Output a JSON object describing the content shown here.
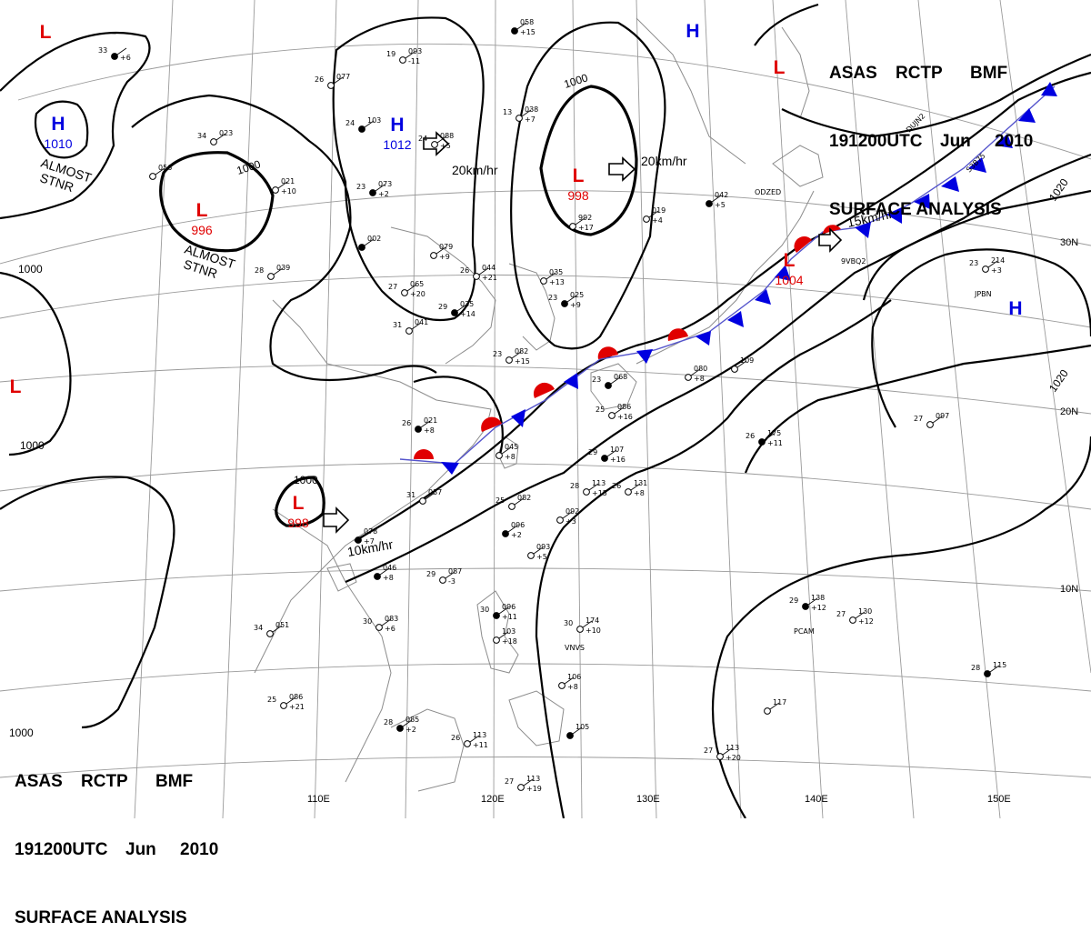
{
  "header": {
    "agency": "ASAS",
    "station": "RCTP",
    "code": "BMF",
    "time": "191200UTC",
    "month": "Jun",
    "year": "2010",
    "title": "SURFACE ANALYSIS"
  },
  "longitude_labels": [
    "110E",
    "120E",
    "130E",
    "140E",
    "150E"
  ],
  "latitude_labels": [
    "30N",
    "20N",
    "10N"
  ],
  "isobar_labels": [
    "1000",
    "1000",
    "1000",
    "1000",
    "1000",
    "1000",
    "1020",
    "1020"
  ],
  "pressure_centers": [
    {
      "type": "L",
      "value": "996",
      "note": "ALMOST STNR",
      "color": "#e00000"
    },
    {
      "type": "L",
      "value": "998",
      "note": "",
      "color": "#e00000"
    },
    {
      "type": "L",
      "value": "998",
      "note": "",
      "color": "#e00000"
    },
    {
      "type": "L",
      "value": "1004",
      "note": "",
      "color": "#e00000"
    },
    {
      "type": "H",
      "value": "1010",
      "note": "ALMOST STNR",
      "color": "#0000e0"
    },
    {
      "type": "H",
      "value": "1012",
      "note": "",
      "color": "#0000e0"
    },
    {
      "type": "H",
      "value": "",
      "note": "",
      "color": "#0000e0"
    },
    {
      "type": "H",
      "value": "",
      "note": "",
      "color": "#0000e0"
    },
    {
      "type": "L",
      "value": "",
      "note": "",
      "color": "#e00000"
    },
    {
      "type": "L",
      "value": "",
      "note": "",
      "color": "#e00000"
    },
    {
      "type": "L",
      "value": "",
      "note": "",
      "color": "#e00000"
    }
  ],
  "motion_vectors": [
    "20km/hr",
    "20km/hr",
    "10km/hr",
    "15km/hr"
  ],
  "station_codes": [
    "VNVS",
    "PCAM",
    "JPBN",
    "ODZED",
    "DUJN2",
    "S3B75",
    "9VBQ2"
  ],
  "stations": [
    {
      "temp": "33",
      "pressure": "",
      "change": "+6"
    },
    {
      "temp": "26",
      "pressure": "077",
      "change": ""
    },
    {
      "temp": "19",
      "pressure": "093",
      "change": "-11"
    },
    {
      "temp": "24",
      "pressure": "103",
      "change": ""
    },
    {
      "temp": "24",
      "pressure": "088",
      "change": "+5"
    },
    {
      "temp": "13",
      "pressure": "038",
      "change": "+7"
    },
    {
      "temp": "",
      "pressure": "058",
      "change": "+15"
    },
    {
      "temp": "34",
      "pressure": "023",
      "change": ""
    },
    {
      "temp": "",
      "pressure": "021",
      "change": "+10"
    },
    {
      "temp": "23",
      "pressure": "073",
      "change": "+2"
    },
    {
      "temp": "",
      "pressure": "056",
      "change": ""
    },
    {
      "temp": "28",
      "pressure": "039",
      "change": ""
    },
    {
      "temp": "",
      "pressure": "002",
      "change": ""
    },
    {
      "temp": "",
      "pressure": "079",
      "change": "+9"
    },
    {
      "temp": "27",
      "pressure": "065",
      "change": "+20"
    },
    {
      "temp": "29",
      "pressure": "035",
      "change": "+14"
    },
    {
      "temp": "26",
      "pressure": "044",
      "change": "+21"
    },
    {
      "temp": "",
      "pressure": "035",
      "change": "+13"
    },
    {
      "temp": "23",
      "pressure": "025",
      "change": "+9"
    },
    {
      "temp": "",
      "pressure": "992",
      "change": "+17"
    },
    {
      "temp": "",
      "pressure": "019",
      "change": "+4"
    },
    {
      "temp": "",
      "pressure": "042",
      "change": "+5"
    },
    {
      "temp": "31",
      "pressure": "041",
      "change": ""
    },
    {
      "temp": "23",
      "pressure": "082",
      "change": "+15"
    },
    {
      "temp": "23",
      "pressure": "068",
      "change": ""
    },
    {
      "temp": "",
      "pressure": "080",
      "change": "+8"
    },
    {
      "temp": "",
      "pressure": "109",
      "change": ""
    },
    {
      "temp": "26",
      "pressure": "021",
      "change": "+8"
    },
    {
      "temp": "",
      "pressure": "045",
      "change": "+8"
    },
    {
      "temp": "25",
      "pressure": "086",
      "change": "+16"
    },
    {
      "temp": "29",
      "pressure": "107",
      "change": "+16"
    },
    {
      "temp": "28",
      "pressure": "113",
      "change": "+15"
    },
    {
      "temp": "26",
      "pressure": "131",
      "change": "+8"
    },
    {
      "temp": "26",
      "pressure": "175",
      "change": "+11"
    },
    {
      "temp": "27",
      "pressure": "097",
      "change": ""
    },
    {
      "temp": "31",
      "pressure": "037",
      "change": ""
    },
    {
      "temp": "",
      "pressure": "078",
      "change": "+7"
    },
    {
      "temp": "25",
      "pressure": "082",
      "change": ""
    },
    {
      "temp": "",
      "pressure": "092",
      "change": "+3"
    },
    {
      "temp": "",
      "pressure": "096",
      "change": "+2"
    },
    {
      "temp": "",
      "pressure": "093",
      "change": "+5"
    },
    {
      "temp": "29",
      "pressure": "087",
      "change": "-3"
    },
    {
      "temp": "",
      "pressure": "046",
      "change": "+8"
    },
    {
      "temp": "34",
      "pressure": "051",
      "change": ""
    },
    {
      "temp": "30",
      "pressure": "083",
      "change": "+6"
    },
    {
      "temp": "30",
      "pressure": "096",
      "change": "+11"
    },
    {
      "temp": "",
      "pressure": "103",
      "change": "+18"
    },
    {
      "temp": "30",
      "pressure": "174",
      "change": "+10"
    },
    {
      "temp": "29",
      "pressure": "138",
      "change": "+12"
    },
    {
      "temp": "27",
      "pressure": "130",
      "change": "+12"
    },
    {
      "temp": "25",
      "pressure": "086",
      "change": "+21"
    },
    {
      "temp": "28",
      "pressure": "085",
      "change": "+2"
    },
    {
      "temp": "26",
      "pressure": "113",
      "change": "+11"
    },
    {
      "temp": "",
      "pressure": "106",
      "change": "+8"
    },
    {
      "temp": "",
      "pressure": "105",
      "change": ""
    },
    {
      "temp": "27",
      "pressure": "113",
      "change": "+20"
    },
    {
      "temp": "",
      "pressure": "117",
      "change": ""
    },
    {
      "temp": "28",
      "pressure": "115",
      "change": ""
    },
    {
      "temp": "27",
      "pressure": "113",
      "change": "+19"
    },
    {
      "temp": "23",
      "pressure": "214",
      "change": "+3"
    }
  ],
  "colors": {
    "isobar": "#000000",
    "grid": "#9a9a9a",
    "coast": "#8c8c8c",
    "warm_front": "#e00000",
    "cold_front": "#0000e0",
    "low": "#e00000",
    "high": "#0000e0",
    "background": "#ffffff"
  }
}
